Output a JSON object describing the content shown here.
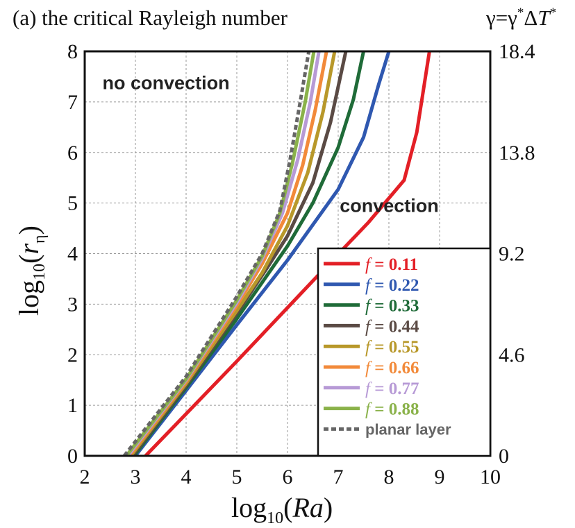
{
  "chart_data": {
    "type": "line",
    "title": "(a) the critical Rayleigh number",
    "xlabel": "log10(Ra)",
    "ylabel": "log10(rη)",
    "right_axis_label": "γ=γ*ΔT*",
    "xlim": [
      2,
      10
    ],
    "ylim": [
      0,
      8
    ],
    "xticks": [
      "2",
      "3",
      "4",
      "5",
      "6",
      "7",
      "8",
      "9",
      "10"
    ],
    "yticks": [
      "0",
      "1",
      "2",
      "3",
      "4",
      "5",
      "6",
      "7",
      "8"
    ],
    "right_ticks": [
      {
        "y": 0,
        "label": "0"
      },
      {
        "y": 2,
        "label": "4.6"
      },
      {
        "y": 4,
        "label": "9.2"
      },
      {
        "y": 6,
        "label": "13.8"
      },
      {
        "y": 8,
        "label": "18.4"
      }
    ],
    "grid": true,
    "legend_position": "bottom-right",
    "annotations": [
      {
        "text": "no convection",
        "x": 2.35,
        "y": 7.25
      },
      {
        "text": "convection",
        "x": 7.03,
        "y": 4.82
      }
    ],
    "series": [
      {
        "name": "f = 0.11",
        "label_prefix": "f",
        "label_value": "= 0.11",
        "color": "#e31f26",
        "style": "solid",
        "x": [
          3.2,
          4.0,
          5.0,
          6.0,
          7.0,
          7.6,
          8.3,
          8.55,
          8.8
        ],
        "y": [
          0,
          0.83,
          1.87,
          2.93,
          3.99,
          4.62,
          5.45,
          6.4,
          8.0
        ]
      },
      {
        "name": "f = 0.22",
        "label_prefix": "f",
        "label_value": "= 0.22",
        "color": "#2f58b0",
        "style": "solid",
        "x": [
          3.0,
          4.0,
          5.0,
          6.0,
          7.0,
          7.5,
          7.8,
          8.0
        ],
        "y": [
          0,
          1.29,
          2.59,
          3.87,
          5.27,
          6.3,
          7.35,
          8.0
        ]
      },
      {
        "name": "f = 0.33",
        "label_prefix": "f",
        "label_value": "= 0.33",
        "color": "#1f6b38",
        "style": "solid",
        "x": [
          2.97,
          4.0,
          5.0,
          6.0,
          6.5,
          7.0,
          7.3,
          7.5
        ],
        "y": [
          0,
          1.35,
          2.71,
          4.15,
          5.0,
          6.1,
          7.05,
          8.0
        ]
      },
      {
        "name": "f = 0.44",
        "label_prefix": "f",
        "label_value": "= 0.44",
        "color": "#5a4a44",
        "style": "solid",
        "x": [
          2.94,
          4.0,
          5.0,
          5.6,
          6.0,
          6.5,
          6.85,
          7.15
        ],
        "y": [
          0,
          1.39,
          2.82,
          3.72,
          4.35,
          5.4,
          6.6,
          8.0
        ]
      },
      {
        "name": "f = 0.55",
        "label_prefix": "f",
        "label_value": "= 0.55",
        "color": "#b8982a",
        "style": "solid",
        "x": [
          2.91,
          4.0,
          5.0,
          5.5,
          6.0,
          6.4,
          6.7,
          6.93
        ],
        "y": [
          0,
          1.43,
          2.87,
          3.62,
          4.55,
          5.6,
          6.8,
          8.0
        ]
      },
      {
        "name": "f = 0.66",
        "label_prefix": "f",
        "label_value": "= 0.66",
        "color": "#f28a3a",
        "style": "solid",
        "x": [
          2.88,
          4.0,
          5.0,
          5.5,
          6.0,
          6.3,
          6.55,
          6.77
        ],
        "y": [
          0,
          1.47,
          2.97,
          3.8,
          4.8,
          5.75,
          6.85,
          8.0
        ]
      },
      {
        "name": "f = 0.77",
        "label_prefix": "f",
        "label_value": "= 0.77",
        "color": "#b79ad6",
        "style": "solid",
        "x": [
          2.85,
          4.0,
          5.0,
          5.5,
          5.9,
          6.2,
          6.45,
          6.62
        ],
        "y": [
          0,
          1.5,
          3.03,
          3.9,
          4.8,
          5.85,
          7.0,
          8.0
        ]
      },
      {
        "name": "f = 0.88",
        "label_prefix": "f",
        "label_value": "= 0.88",
        "color": "#8ab24a",
        "style": "solid",
        "x": [
          2.82,
          4.0,
          5.0,
          5.5,
          5.85,
          6.1,
          6.35,
          6.52
        ],
        "y": [
          0,
          1.52,
          3.08,
          3.95,
          4.8,
          5.8,
          7.0,
          8.0
        ]
      },
      {
        "name": "planar layer",
        "label_prefix": "",
        "label_value": "planar layer",
        "color": "#666666",
        "style": "dashed",
        "x": [
          2.78,
          4.0,
          5.0,
          5.5,
          5.85,
          6.05,
          6.25,
          6.42
        ],
        "y": [
          0,
          1.57,
          3.15,
          4.0,
          4.85,
          5.85,
          7.0,
          8.0
        ]
      }
    ]
  }
}
